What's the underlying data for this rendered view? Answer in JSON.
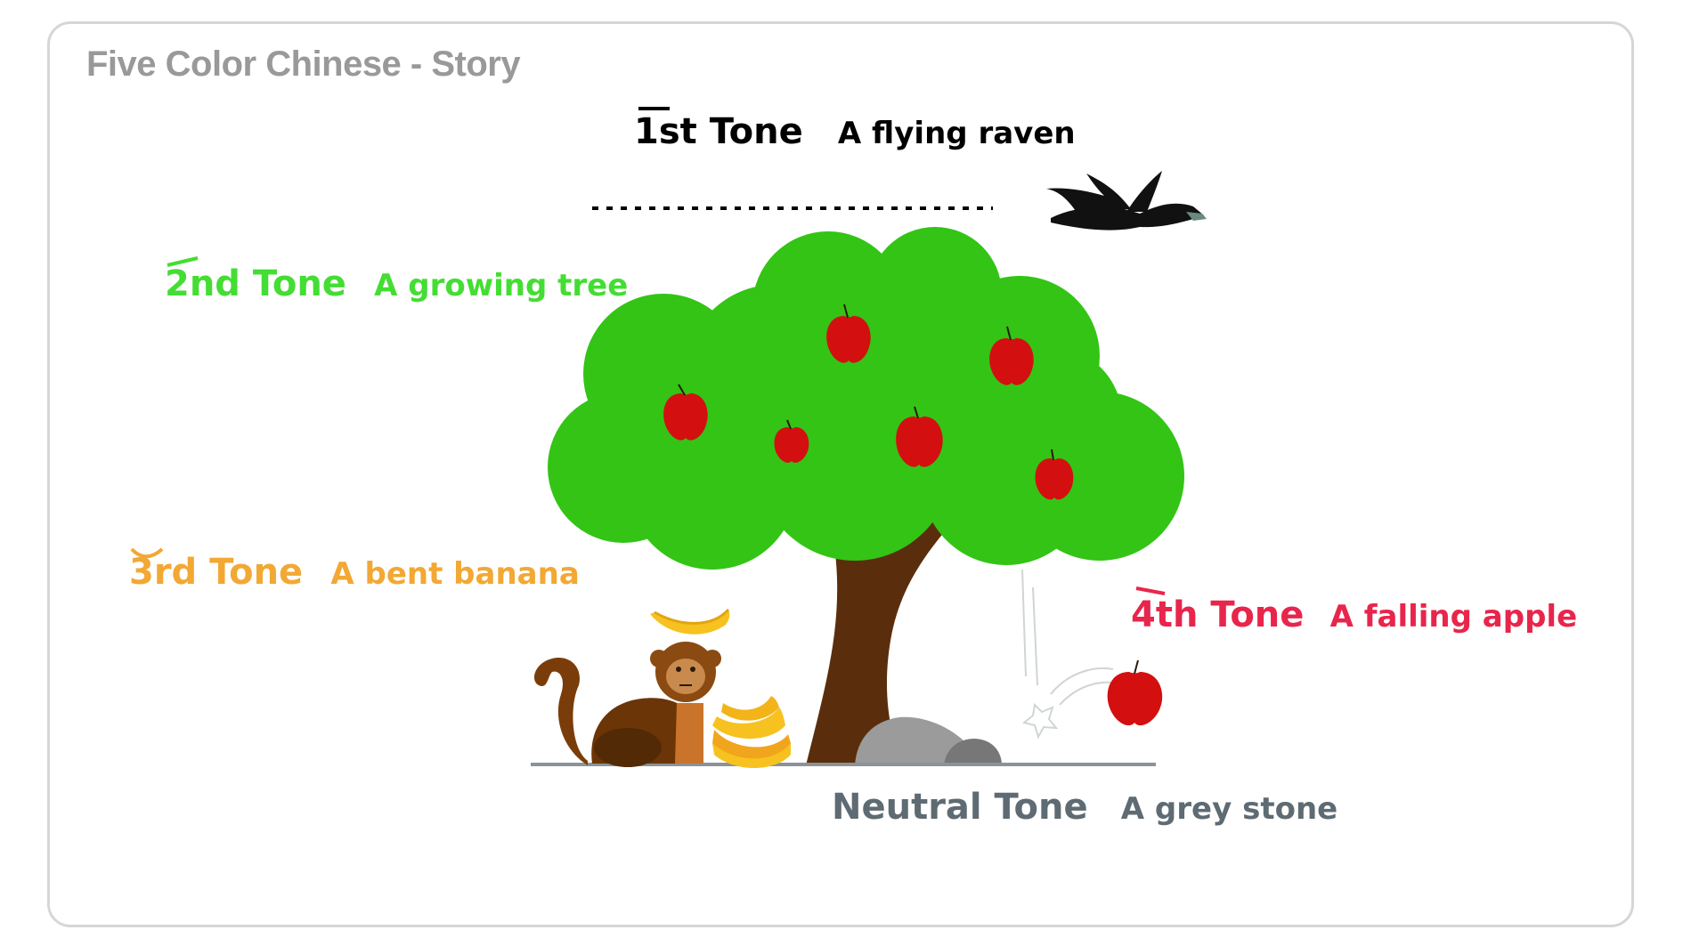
{
  "title": "Five Color Chinese - Story",
  "tones": [
    {
      "name": "1st Tone",
      "description": "A flying raven",
      "color": "#000000",
      "icon": "flat-line-mark"
    },
    {
      "name": "2nd Tone",
      "description": "A growing tree",
      "color": "#44dd33",
      "icon": "rising-mark"
    },
    {
      "name": "3rd Tone",
      "description": "A bent banana",
      "color": "#f2a833",
      "icon": "dip-mark"
    },
    {
      "name": "4th Tone",
      "description": "A falling apple",
      "color": "#e8254b",
      "icon": "falling-mark"
    },
    {
      "name": "Neutral Tone",
      "description": "A grey stone",
      "color": "#5e6b73",
      "icon": "none"
    }
  ],
  "illustration": {
    "elements": [
      "raven-icon",
      "tree-icon",
      "apple-icon",
      "monkey-icon",
      "banana-icon",
      "stone-icon",
      "ground-line"
    ]
  }
}
